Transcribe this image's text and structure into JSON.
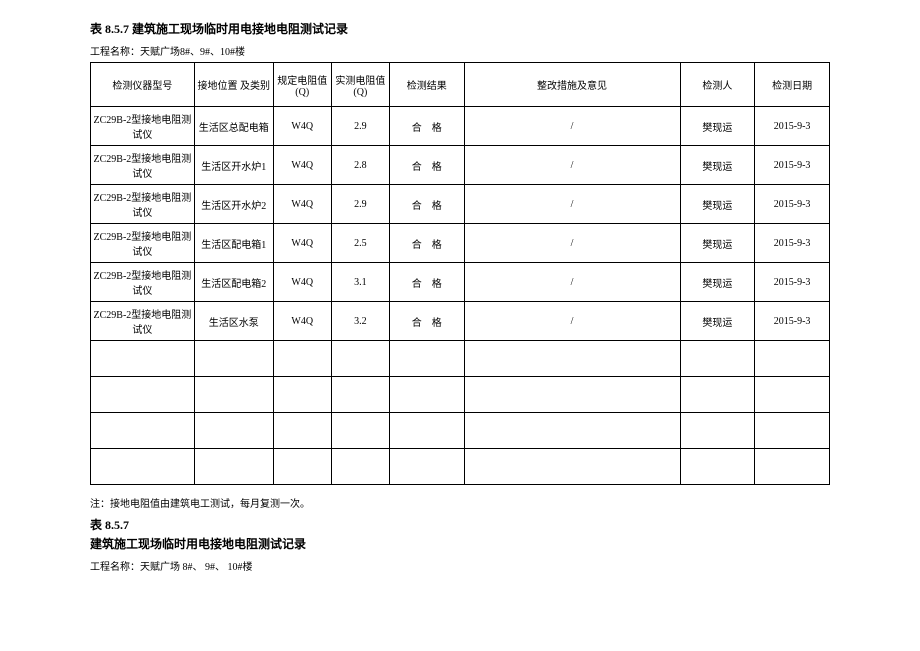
{
  "title": "表 8.5.7 建筑施工现场临时用电接地电阻测试记录",
  "project_name": "工程名称：天赋广场8#、9#、10#楼",
  "headers": {
    "c1": "检测仪器型号",
    "c2": "接地位置\n及类别",
    "c3": "规定电阻值\n(Q)",
    "c4": "实测电阻值\n(Q)",
    "c5": "检测结果",
    "c6": "整改措施及意见",
    "c7": "检测人",
    "c8": "检测日期"
  },
  "rows": [
    {
      "c1": "ZC29B-2型接地电阻测试仪",
      "c2": "生活区总配电箱",
      "c3": "W4Q",
      "c4": "2.9",
      "c5": "合　格",
      "c6": "/",
      "c7": "樊现运",
      "c8": "2015-9-3"
    },
    {
      "c1": "ZC29B-2型接地电阻测试仪",
      "c2": "生活区开水炉1",
      "c3": "W4Q",
      "c4": "2.8",
      "c5": "合　格",
      "c6": "/",
      "c7": "樊现运",
      "c8": "2015-9-3"
    },
    {
      "c1": "ZC29B-2型接地电阻测试仪",
      "c2": "生活区开水炉2",
      "c3": "W4Q",
      "c4": "2.9",
      "c5": "合　格",
      "c6": "/",
      "c7": "樊现运",
      "c8": "2015-9-3"
    },
    {
      "c1": "ZC29B-2型接地电阻测试仪",
      "c2": "生活区配电箱1",
      "c3": "W4Q",
      "c4": "2.5",
      "c5": "合　格",
      "c6": "/",
      "c7": "樊现运",
      "c8": "2015-9-3"
    },
    {
      "c1": "ZC29B-2型接地电阻测试仪",
      "c2": "生活区配电箱2",
      "c3": "W4Q",
      "c4": "3.1",
      "c5": "合　格",
      "c6": "/",
      "c7": "樊现运",
      "c8": "2015-9-3"
    },
    {
      "c1": "ZC29B-2型接地电阻测试仪",
      "c2": "生活区水泵",
      "c3": "W4Q",
      "c4": "3.2",
      "c5": "合　格",
      "c6": "/",
      "c7": "樊现运",
      "c8": "2015-9-3"
    },
    {
      "c1": "",
      "c2": "",
      "c3": "",
      "c4": "",
      "c5": "",
      "c6": "",
      "c7": "",
      "c8": ""
    },
    {
      "c1": "",
      "c2": "",
      "c3": "",
      "c4": "",
      "c5": "",
      "c6": "",
      "c7": "",
      "c8": ""
    },
    {
      "c1": "",
      "c2": "",
      "c3": "",
      "c4": "",
      "c5": "",
      "c6": "",
      "c7": "",
      "c8": ""
    },
    {
      "c1": "",
      "c2": "",
      "c3": "",
      "c4": "",
      "c5": "",
      "c6": "",
      "c7": "",
      "c8": ""
    }
  ],
  "note": "注：接地电阻值由建筑电工测试，每月复测一次。",
  "subtitle": "表 8.5.7",
  "subtitle2": "建筑施工现场临时用电接地电阻测试记录",
  "project_name2": "工程名称：天赋广场 8#、 9#、 10#楼"
}
